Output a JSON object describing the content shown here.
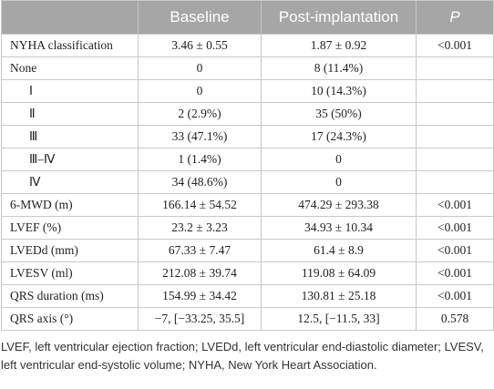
{
  "table": {
    "header": [
      "Baseline",
      "Post-implantation",
      "P"
    ],
    "rows": [
      [
        "NYHA classification",
        "3.46 ± 0.55",
        "1.87 ± 0.92",
        "<0.001"
      ],
      [
        "None",
        "0",
        "8 (11.4%)"
      ],
      [
        "Ⅰ",
        "0",
        "10 (14.3%)"
      ],
      [
        "Ⅱ",
        "2 (2.9%)",
        "35 (50%)"
      ],
      [
        "Ⅲ",
        "33 (47.1%)",
        "17 (24.3%)"
      ],
      [
        "Ⅲ–Ⅳ",
        "1 (1.4%)",
        "0"
      ],
      [
        "Ⅳ",
        "34 (48.6%)",
        "0"
      ],
      [
        "6-MWD (m)",
        "166.14 ± 54.52",
        "474.29 ± 293.38",
        "<0.001"
      ],
      [
        "LVEF (%)",
        "23.2 ± 3.23",
        "34.93 ± 10.34",
        "<0.001"
      ],
      [
        "LVEDd (mm)",
        "67.33 ± 7.47",
        "61.4 ± 8.9",
        "<0.001"
      ],
      [
        "LVESV (ml)",
        "212.08 ± 39.74",
        "119.08 ± 64.09",
        "<0.001"
      ],
      [
        "QRS duration (ms)",
        "154.99 ± 34.42",
        "130.81 ± 25.18",
        "<0.001"
      ],
      [
        "QRS axis (°)",
        "−7, [−33.25, 35.5]",
        "12.5, [−11.5, 33]",
        "0.578"
      ]
    ]
  },
  "footnote": "LVEF, left ventricular ejection fraction; LVEDd, left ventricular end-diastolic diameter; LVESV, left ventricular end-systolic volume; NYHA, New York Heart Association."
}
